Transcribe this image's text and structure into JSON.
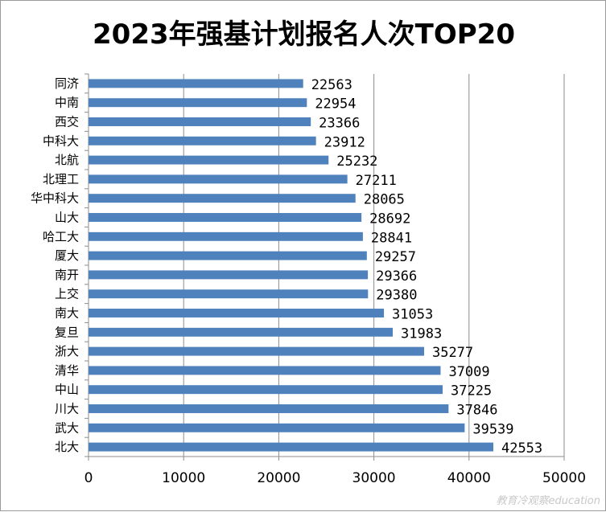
{
  "chart_data": {
    "type": "bar",
    "orientation": "horizontal",
    "title": "2023年强基计划报名人次TOP20",
    "xlabel": "",
    "ylabel": "",
    "xlim": [
      0,
      50000
    ],
    "x_ticks": [
      "0",
      "10000",
      "20000",
      "30000",
      "40000",
      "50000"
    ],
    "grid": "vertical",
    "legend": "none",
    "bar_color": "#4F81BD",
    "categories": [
      "同济",
      "中南",
      "西交",
      "中科大",
      "北航",
      "北理工",
      "华中科大",
      "山大",
      "哈工大",
      "厦大",
      "南开",
      "上交",
      "南大",
      "复旦",
      "浙大",
      "清华",
      "中山",
      "川大",
      "武大",
      "北大"
    ],
    "values": [
      22563,
      22954,
      23366,
      23912,
      25232,
      27211,
      28065,
      28692,
      28841,
      29257,
      29366,
      29380,
      31053,
      31983,
      35277,
      37009,
      37225,
      37846,
      39539,
      42553
    ]
  },
  "watermark": "教育冷观察education"
}
